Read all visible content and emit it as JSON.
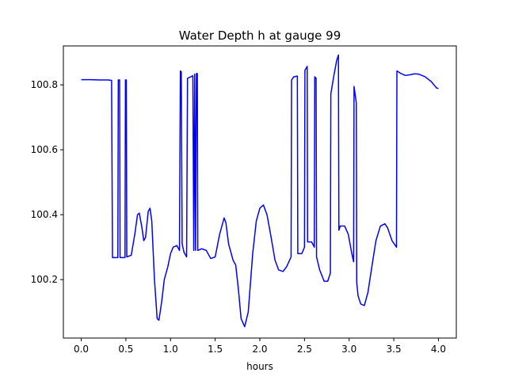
{
  "chart_data": {
    "type": "line",
    "title": "Water Depth h at gauge 99",
    "xlabel": "hours",
    "ylabel": "",
    "xlim": [
      -0.2,
      4.2
    ],
    "ylim": [
      100.02,
      100.92
    ],
    "xticks": [
      0.0,
      0.5,
      1.0,
      1.5,
      2.0,
      2.5,
      3.0,
      3.5,
      4.0
    ],
    "xtick_labels": [
      "0.0",
      "0.5",
      "1.0",
      "1.5",
      "2.0",
      "2.5",
      "3.0",
      "3.5",
      "4.0"
    ],
    "yticks": [
      100.2,
      100.4,
      100.6,
      100.8
    ],
    "ytick_labels": [
      "100.2",
      "100.4",
      "100.6",
      "100.8"
    ],
    "grid": false,
    "series": [
      {
        "color": "#0000ff",
        "points": [
          [
            0.0,
            100.816
          ],
          [
            0.1,
            100.816
          ],
          [
            0.2,
            100.815
          ],
          [
            0.3,
            100.815
          ],
          [
            0.34,
            100.814
          ],
          [
            0.35,
            100.268
          ],
          [
            0.41,
            100.268
          ],
          [
            0.415,
            100.815
          ],
          [
            0.43,
            100.815
          ],
          [
            0.435,
            100.268
          ],
          [
            0.49,
            100.268
          ],
          [
            0.495,
            100.815
          ],
          [
            0.505,
            100.815
          ],
          [
            0.51,
            100.27
          ],
          [
            0.56,
            100.275
          ],
          [
            0.6,
            100.34
          ],
          [
            0.63,
            100.4
          ],
          [
            0.65,
            100.405
          ],
          [
            0.68,
            100.36
          ],
          [
            0.7,
            100.32
          ],
          [
            0.72,
            100.33
          ],
          [
            0.75,
            100.41
          ],
          [
            0.77,
            100.42
          ],
          [
            0.79,
            100.38
          ],
          [
            0.82,
            100.2
          ],
          [
            0.85,
            100.08
          ],
          [
            0.87,
            100.075
          ],
          [
            0.9,
            100.13
          ],
          [
            0.93,
            100.2
          ],
          [
            0.97,
            100.24
          ],
          [
            1.0,
            100.28
          ],
          [
            1.03,
            100.3
          ],
          [
            1.07,
            100.305
          ],
          [
            1.1,
            100.29
          ],
          [
            1.11,
            100.843
          ],
          [
            1.12,
            100.84
          ],
          [
            1.13,
            100.31
          ],
          [
            1.15,
            100.285
          ],
          [
            1.18,
            100.27
          ],
          [
            1.19,
            100.82
          ],
          [
            1.25,
            100.828
          ],
          [
            1.26,
            100.29
          ],
          [
            1.27,
            100.833
          ],
          [
            1.28,
            100.29
          ],
          [
            1.29,
            100.835
          ],
          [
            1.3,
            100.835
          ],
          [
            1.305,
            100.29
          ],
          [
            1.35,
            100.295
          ],
          [
            1.4,
            100.29
          ],
          [
            1.45,
            100.265
          ],
          [
            1.5,
            100.27
          ],
          [
            1.55,
            100.34
          ],
          [
            1.6,
            100.39
          ],
          [
            1.62,
            100.375
          ],
          [
            1.65,
            100.31
          ],
          [
            1.7,
            100.26
          ],
          [
            1.73,
            100.245
          ],
          [
            1.76,
            100.17
          ],
          [
            1.79,
            100.08
          ],
          [
            1.83,
            100.055
          ],
          [
            1.87,
            100.1
          ],
          [
            1.92,
            100.28
          ],
          [
            1.96,
            100.38
          ],
          [
            2.0,
            100.42
          ],
          [
            2.04,
            100.43
          ],
          [
            2.08,
            100.4
          ],
          [
            2.12,
            100.34
          ],
          [
            2.17,
            100.26
          ],
          [
            2.21,
            100.23
          ],
          [
            2.26,
            100.225
          ],
          [
            2.3,
            100.24
          ],
          [
            2.35,
            100.27
          ],
          [
            2.355,
            100.815
          ],
          [
            2.38,
            100.825
          ],
          [
            2.42,
            100.827
          ],
          [
            2.425,
            100.28
          ],
          [
            2.47,
            100.28
          ],
          [
            2.5,
            100.3
          ],
          [
            2.505,
            100.845
          ],
          [
            2.53,
            100.857
          ],
          [
            2.535,
            100.316
          ],
          [
            2.58,
            100.316
          ],
          [
            2.61,
            100.3
          ],
          [
            2.615,
            100.825
          ],
          [
            2.63,
            100.82
          ],
          [
            2.635,
            100.27
          ],
          [
            2.67,
            100.23
          ],
          [
            2.72,
            100.195
          ],
          [
            2.76,
            100.195
          ],
          [
            2.79,
            100.22
          ],
          [
            2.795,
            100.772
          ],
          [
            2.83,
            100.83
          ],
          [
            2.86,
            100.875
          ],
          [
            2.88,
            100.892
          ],
          [
            2.885,
            100.352
          ],
          [
            2.9,
            100.365
          ],
          [
            2.95,
            100.365
          ],
          [
            2.99,
            100.34
          ],
          [
            3.03,
            100.28
          ],
          [
            3.05,
            100.255
          ],
          [
            3.055,
            100.795
          ],
          [
            3.08,
            100.745
          ],
          [
            3.085,
            100.19
          ],
          [
            3.1,
            100.15
          ],
          [
            3.13,
            100.125
          ],
          [
            3.17,
            100.12
          ],
          [
            3.21,
            100.16
          ],
          [
            3.26,
            100.25
          ],
          [
            3.3,
            100.32
          ],
          [
            3.35,
            100.365
          ],
          [
            3.4,
            100.372
          ],
          [
            3.43,
            100.36
          ],
          [
            3.48,
            100.32
          ],
          [
            3.53,
            100.3
          ],
          [
            3.535,
            100.843
          ],
          [
            3.58,
            100.835
          ],
          [
            3.63,
            100.829
          ],
          [
            3.68,
            100.831
          ],
          [
            3.73,
            100.834
          ],
          [
            3.78,
            100.833
          ],
          [
            3.85,
            100.825
          ],
          [
            3.92,
            100.81
          ],
          [
            3.98,
            100.79
          ],
          [
            4.0,
            100.789
          ]
        ]
      }
    ]
  }
}
